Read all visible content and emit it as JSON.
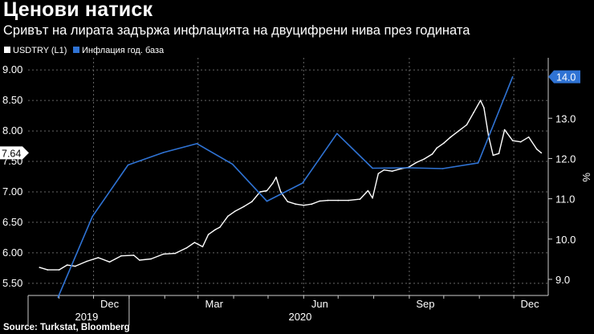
{
  "title": "Ценови натиск",
  "subtitle": "Сривът на лирата задържа инфлацията на двуцифрени нива през годината",
  "source": "Source: Turkstat, Bloomberg",
  "chart_data": {
    "type": "line",
    "legend_position": "top-left",
    "grid": true,
    "y_left": {
      "ticks": [
        "5.50",
        "6.00",
        "6.50",
        "7.00",
        "7.50",
        "8.00",
        "8.50",
        "9.00"
      ],
      "range": [
        5.3,
        9.2
      ]
    },
    "y_right": {
      "label": "%",
      "ticks": [
        "9.0",
        "10.0",
        "11.0",
        "12.0",
        "13.0"
      ],
      "range": [
        8.6,
        14.5
      ]
    },
    "x_axis": {
      "month_labels": [
        "Dec",
        "Mar",
        "Jun",
        "Sep",
        "Dec"
      ],
      "year_labels": [
        "2019",
        "2020"
      ]
    },
    "series": [
      {
        "name": "USDTRY (L1)",
        "color": "#ffffff",
        "axis": "left",
        "last_value_label": "7.64",
        "points": [
          [
            "2019-10-15",
            5.76
          ],
          [
            "2019-10-22",
            5.72
          ],
          [
            "2019-11-01",
            5.72
          ],
          [
            "2019-11-08",
            5.8
          ],
          [
            "2019-11-15",
            5.78
          ],
          [
            "2019-11-25",
            5.86
          ],
          [
            "2019-12-05",
            5.92
          ],
          [
            "2019-12-15",
            5.85
          ],
          [
            "2019-12-25",
            5.95
          ],
          [
            "2020-01-05",
            5.96
          ],
          [
            "2020-01-10",
            5.88
          ],
          [
            "2020-01-20",
            5.9
          ],
          [
            "2020-01-31",
            5.98
          ],
          [
            "2020-02-10",
            5.99
          ],
          [
            "2020-02-20",
            6.08
          ],
          [
            "2020-02-27",
            6.17
          ],
          [
            "2020-03-05",
            6.1
          ],
          [
            "2020-03-10",
            6.3
          ],
          [
            "2020-03-16",
            6.38
          ],
          [
            "2020-03-20",
            6.42
          ],
          [
            "2020-03-27",
            6.6
          ],
          [
            "2020-04-02",
            6.68
          ],
          [
            "2020-04-10",
            6.76
          ],
          [
            "2020-04-17",
            6.84
          ],
          [
            "2020-04-24",
            7.0
          ],
          [
            "2020-04-30",
            7.02
          ],
          [
            "2020-05-05",
            7.14
          ],
          [
            "2020-05-08",
            7.24
          ],
          [
            "2020-05-12",
            7.0
          ],
          [
            "2020-05-18",
            6.84
          ],
          [
            "2020-05-25",
            6.8
          ],
          [
            "2020-06-01",
            6.78
          ],
          [
            "2020-06-08",
            6.8
          ],
          [
            "2020-06-15",
            6.85
          ],
          [
            "2020-06-22",
            6.86
          ],
          [
            "2020-07-01",
            6.86
          ],
          [
            "2020-07-10",
            6.86
          ],
          [
            "2020-07-20",
            6.88
          ],
          [
            "2020-07-27",
            7.02
          ],
          [
            "2020-07-31",
            6.9
          ],
          [
            "2020-08-05",
            7.3
          ],
          [
            "2020-08-10",
            7.36
          ],
          [
            "2020-08-17",
            7.34
          ],
          [
            "2020-08-25",
            7.38
          ],
          [
            "2020-08-31",
            7.4
          ],
          [
            "2020-09-07",
            7.48
          ],
          [
            "2020-09-14",
            7.54
          ],
          [
            "2020-09-21",
            7.62
          ],
          [
            "2020-09-25",
            7.72
          ],
          [
            "2020-10-01",
            7.8
          ],
          [
            "2020-10-07",
            7.9
          ],
          [
            "2020-10-14",
            8.0
          ],
          [
            "2020-10-21",
            8.1
          ],
          [
            "2020-10-27",
            8.3
          ],
          [
            "2020-11-02",
            8.5
          ],
          [
            "2020-11-05",
            8.38
          ],
          [
            "2020-11-09",
            7.92
          ],
          [
            "2020-11-13",
            7.6
          ],
          [
            "2020-11-18",
            7.63
          ],
          [
            "2020-11-23",
            8.02
          ],
          [
            "2020-11-30",
            7.84
          ],
          [
            "2020-12-07",
            7.82
          ],
          [
            "2020-12-14",
            7.9
          ],
          [
            "2020-12-21",
            7.7
          ],
          [
            "2020-12-25",
            7.64
          ]
        ]
      },
      {
        "name": "Инфлация год. база",
        "color": "#2f73d4",
        "axis": "right",
        "last_value_label": "14.0",
        "points": [
          [
            "2019-10-31",
            8.55
          ],
          [
            "2019-11-30",
            10.56
          ],
          [
            "2019-12-31",
            11.84
          ],
          [
            "2020-01-31",
            12.15
          ],
          [
            "2020-02-29",
            12.37
          ],
          [
            "2020-03-31",
            11.86
          ],
          [
            "2020-04-30",
            10.94
          ],
          [
            "2020-05-31",
            11.39
          ],
          [
            "2020-06-30",
            12.62
          ],
          [
            "2020-07-31",
            11.76
          ],
          [
            "2020-08-31",
            11.77
          ],
          [
            "2020-09-30",
            11.75
          ],
          [
            "2020-10-31",
            11.89
          ],
          [
            "2020-11-30",
            14.03
          ]
        ]
      }
    ]
  }
}
